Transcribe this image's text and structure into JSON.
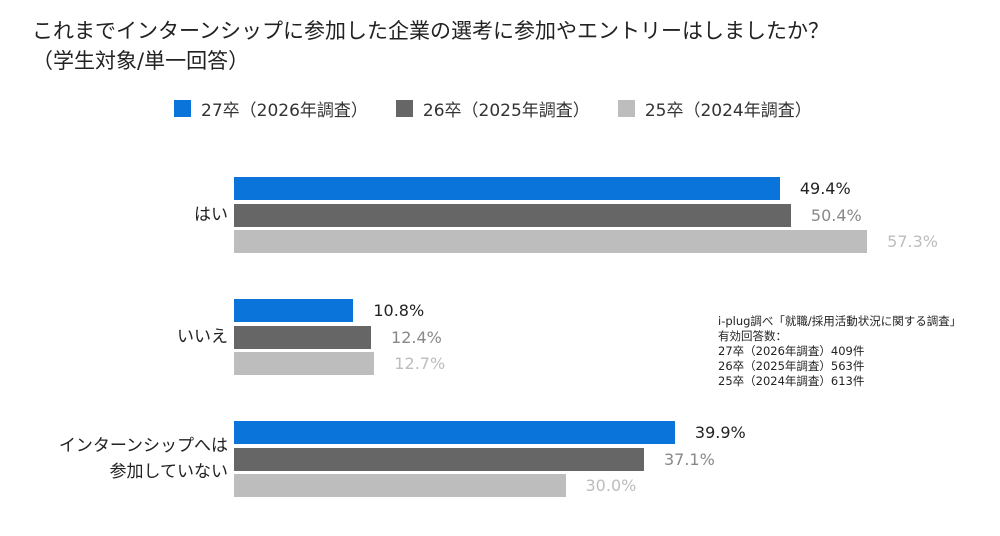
{
  "chart_data": {
    "type": "bar",
    "orientation": "horizontal",
    "title": "これまでインターンシップに参加した企業の選考に参加やエントリーはしましたか？",
    "subtitle": "（学生対象/単一回答）",
    "categories": [
      "はい",
      "いいえ",
      "インターンシップへは参加していない"
    ],
    "category_lines": [
      [
        "はい"
      ],
      [
        "いいえ"
      ],
      [
        "インターンシップへは",
        "参加していない"
      ]
    ],
    "series": [
      {
        "name": "27卒（2026年調査）",
        "color": "#0a74da",
        "label_color": "#222222",
        "values": [
          49.4,
          10.8,
          39.9
        ]
      },
      {
        "name": "26卒（2025年調査）",
        "color": "#666666",
        "label_color": "#888888",
        "values": [
          50.4,
          12.4,
          37.1
        ]
      },
      {
        "name": "25卒（2024年調査）",
        "color": "#bdbdbd",
        "label_color": "#bdbdbd",
        "values": [
          57.3,
          12.7,
          30.0
        ]
      }
    ],
    "value_suffix": "%",
    "xlim": [
      0,
      100
    ],
    "grid": false,
    "legend_position": "top"
  },
  "note_lines": [
    "i-plug調べ「就職/採用活動状況に関する調査」",
    "有効回答数：",
    "27卒（2026年調査）409件",
    "26卒（2025年調査）563件",
    "25卒（2024年調査）613件"
  ]
}
